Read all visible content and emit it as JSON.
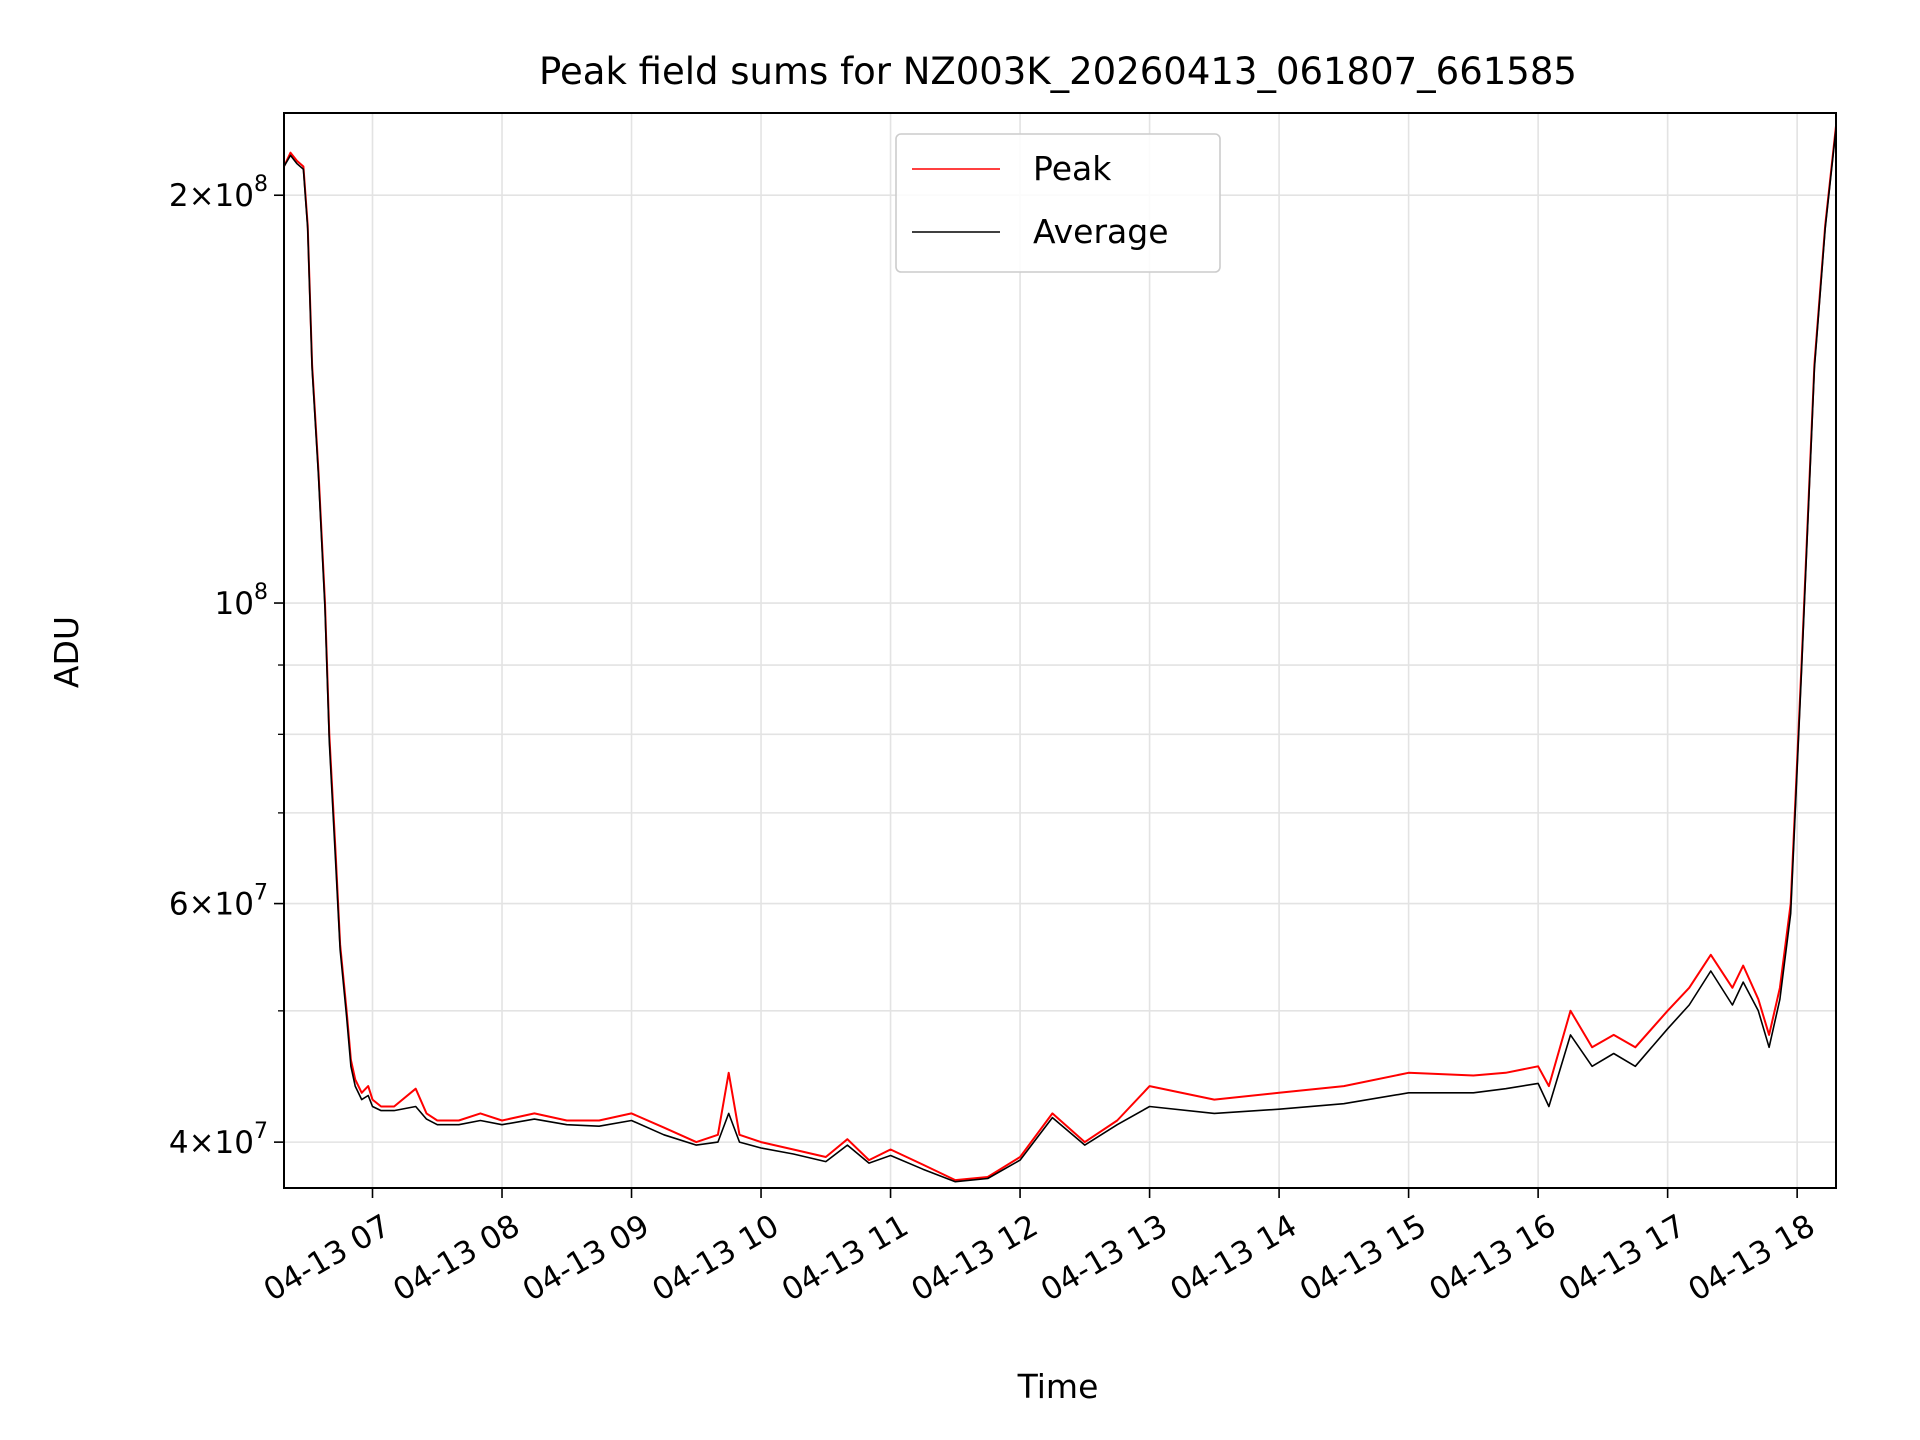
{
  "chart_data": {
    "type": "line",
    "title": "Peak field sums for NZ003K_20260413_061807_661585",
    "xlabel": "Time",
    "ylabel": "ADU",
    "y_scale": "log",
    "ylim": [
      37000000,
      230000000
    ],
    "xlim": [
      "2026-04-13T06:19:00",
      "2026-04-13T18:18:00"
    ],
    "grid": true,
    "legend_position": "top-center",
    "x_ticks": [
      "04-13 07",
      "04-13 08",
      "04-13 09",
      "04-13 10",
      "04-13 11",
      "04-13 12",
      "04-13 13",
      "04-13 14",
      "04-13 15",
      "04-13 16",
      "04-13 17",
      "04-13 18"
    ],
    "y_ticks": [
      {
        "value": 200000000,
        "mant": "2×10",
        "exp": "8"
      },
      {
        "value": 100000000,
        "mant": "10",
        "exp": "8"
      },
      {
        "value": 60000000,
        "mant": "6×10",
        "exp": "7"
      },
      {
        "value": 40000000,
        "mant": "4×10",
        "exp": "7"
      }
    ],
    "series": [
      {
        "name": "Peak",
        "color": "#ff0000",
        "x": [
          "2026-04-13T06:19",
          "2026-04-13T06:22",
          "2026-04-13T06:25",
          "2026-04-13T06:28",
          "2026-04-13T06:30",
          "2026-04-13T06:32",
          "2026-04-13T06:35",
          "2026-04-13T06:38",
          "2026-04-13T06:40",
          "2026-04-13T06:43",
          "2026-04-13T06:45",
          "2026-04-13T06:48",
          "2026-04-13T06:50",
          "2026-04-13T06:52",
          "2026-04-13T06:55",
          "2026-04-13T06:58",
          "2026-04-13T07:00",
          "2026-04-13T07:04",
          "2026-04-13T07:10",
          "2026-04-13T07:20",
          "2026-04-13T07:25",
          "2026-04-13T07:30",
          "2026-04-13T07:40",
          "2026-04-13T07:50",
          "2026-04-13T08:00",
          "2026-04-13T08:15",
          "2026-04-13T08:30",
          "2026-04-13T08:45",
          "2026-04-13T09:00",
          "2026-04-13T09:15",
          "2026-04-13T09:30",
          "2026-04-13T09:40",
          "2026-04-13T09:45",
          "2026-04-13T09:50",
          "2026-04-13T10:00",
          "2026-04-13T10:15",
          "2026-04-13T10:30",
          "2026-04-13T10:40",
          "2026-04-13T10:50",
          "2026-04-13T11:00",
          "2026-04-13T11:15",
          "2026-04-13T11:30",
          "2026-04-13T11:45",
          "2026-04-13T12:00",
          "2026-04-13T12:15",
          "2026-04-13T12:30",
          "2026-04-13T12:45",
          "2026-04-13T13:00",
          "2026-04-13T13:30",
          "2026-04-13T14:00",
          "2026-04-13T14:30",
          "2026-04-13T15:00",
          "2026-04-13T15:30",
          "2026-04-13T15:45",
          "2026-04-13T16:00",
          "2026-04-13T16:05",
          "2026-04-13T16:15",
          "2026-04-13T16:25",
          "2026-04-13T16:35",
          "2026-04-13T16:45",
          "2026-04-13T17:00",
          "2026-04-13T17:10",
          "2026-04-13T17:20",
          "2026-04-13T17:30",
          "2026-04-13T17:35",
          "2026-04-13T17:42",
          "2026-04-13T17:47",
          "2026-04-13T17:52",
          "2026-04-13T17:57",
          "2026-04-13T18:02",
          "2026-04-13T18:08",
          "2026-04-13T18:13",
          "2026-04-13T18:18"
        ],
        "values": [
          210000000,
          215000000,
          212000000,
          210000000,
          190000000,
          150000000,
          125000000,
          100000000,
          80000000,
          65000000,
          56000000,
          50000000,
          46000000,
          44500000,
          43500000,
          44000000,
          43000000,
          42500000,
          42500000,
          43800000,
          42000000,
          41500000,
          41500000,
          42000000,
          41500000,
          42000000,
          41500000,
          41500000,
          42000000,
          41000000,
          40000000,
          40500000,
          45000000,
          40500000,
          40000000,
          39500000,
          39000000,
          40200000,
          38800000,
          39500000,
          38500000,
          37500000,
          37700000,
          39000000,
          42000000,
          40000000,
          41500000,
          44000000,
          43000000,
          43500000,
          44000000,
          45000000,
          44800000,
          45000000,
          45500000,
          44000000,
          50000000,
          47000000,
          48000000,
          47000000,
          50000000,
          52000000,
          55000000,
          52000000,
          54000000,
          51000000,
          48000000,
          52000000,
          60000000,
          90000000,
          150000000,
          190000000,
          225000000
        ]
      },
      {
        "name": "Average",
        "color": "#000000",
        "x": [
          "2026-04-13T06:19",
          "2026-04-13T06:22",
          "2026-04-13T06:25",
          "2026-04-13T06:28",
          "2026-04-13T06:30",
          "2026-04-13T06:32",
          "2026-04-13T06:35",
          "2026-04-13T06:38",
          "2026-04-13T06:40",
          "2026-04-13T06:43",
          "2026-04-13T06:45",
          "2026-04-13T06:48",
          "2026-04-13T06:50",
          "2026-04-13T06:52",
          "2026-04-13T06:55",
          "2026-04-13T06:58",
          "2026-04-13T07:00",
          "2026-04-13T07:04",
          "2026-04-13T07:10",
          "2026-04-13T07:20",
          "2026-04-13T07:25",
          "2026-04-13T07:30",
          "2026-04-13T07:40",
          "2026-04-13T07:50",
          "2026-04-13T08:00",
          "2026-04-13T08:15",
          "2026-04-13T08:30",
          "2026-04-13T08:45",
          "2026-04-13T09:00",
          "2026-04-13T09:15",
          "2026-04-13T09:30",
          "2026-04-13T09:40",
          "2026-04-13T09:45",
          "2026-04-13T09:50",
          "2026-04-13T10:00",
          "2026-04-13T10:15",
          "2026-04-13T10:30",
          "2026-04-13T10:40",
          "2026-04-13T10:50",
          "2026-04-13T11:00",
          "2026-04-13T11:15",
          "2026-04-13T11:30",
          "2026-04-13T11:45",
          "2026-04-13T12:00",
          "2026-04-13T12:15",
          "2026-04-13T12:30",
          "2026-04-13T12:45",
          "2026-04-13T13:00",
          "2026-04-13T13:30",
          "2026-04-13T14:00",
          "2026-04-13T14:30",
          "2026-04-13T15:00",
          "2026-04-13T15:30",
          "2026-04-13T15:45",
          "2026-04-13T16:00",
          "2026-04-13T16:05",
          "2026-04-13T16:15",
          "2026-04-13T16:25",
          "2026-04-13T16:35",
          "2026-04-13T16:45",
          "2026-04-13T17:00",
          "2026-04-13T17:10",
          "2026-04-13T17:20",
          "2026-04-13T17:30",
          "2026-04-13T17:35",
          "2026-04-13T17:42",
          "2026-04-13T17:47",
          "2026-04-13T17:52",
          "2026-04-13T17:57",
          "2026-04-13T18:02",
          "2026-04-13T18:08",
          "2026-04-13T18:13",
          "2026-04-13T18:18"
        ],
        "values": [
          210000000,
          214000000,
          211000000,
          209000000,
          189000000,
          149000000,
          124000000,
          99000000,
          79000000,
          64000000,
          55500000,
          49500000,
          45500000,
          44000000,
          43000000,
          43300000,
          42500000,
          42200000,
          42200000,
          42500000,
          41600000,
          41200000,
          41200000,
          41500000,
          41200000,
          41600000,
          41200000,
          41100000,
          41500000,
          40500000,
          39800000,
          40000000,
          42000000,
          40000000,
          39600000,
          39200000,
          38700000,
          39800000,
          38600000,
          39100000,
          38200000,
          37400000,
          37600000,
          38800000,
          41700000,
          39800000,
          41200000,
          42500000,
          42000000,
          42300000,
          42700000,
          43500000,
          43500000,
          43800000,
          44200000,
          42500000,
          48000000,
          45500000,
          46500000,
          45500000,
          48500000,
          50500000,
          53500000,
          50500000,
          52500000,
          50000000,
          47000000,
          51000000,
          59000000,
          89000000,
          149000000,
          189000000,
          224000000
        ]
      }
    ]
  }
}
